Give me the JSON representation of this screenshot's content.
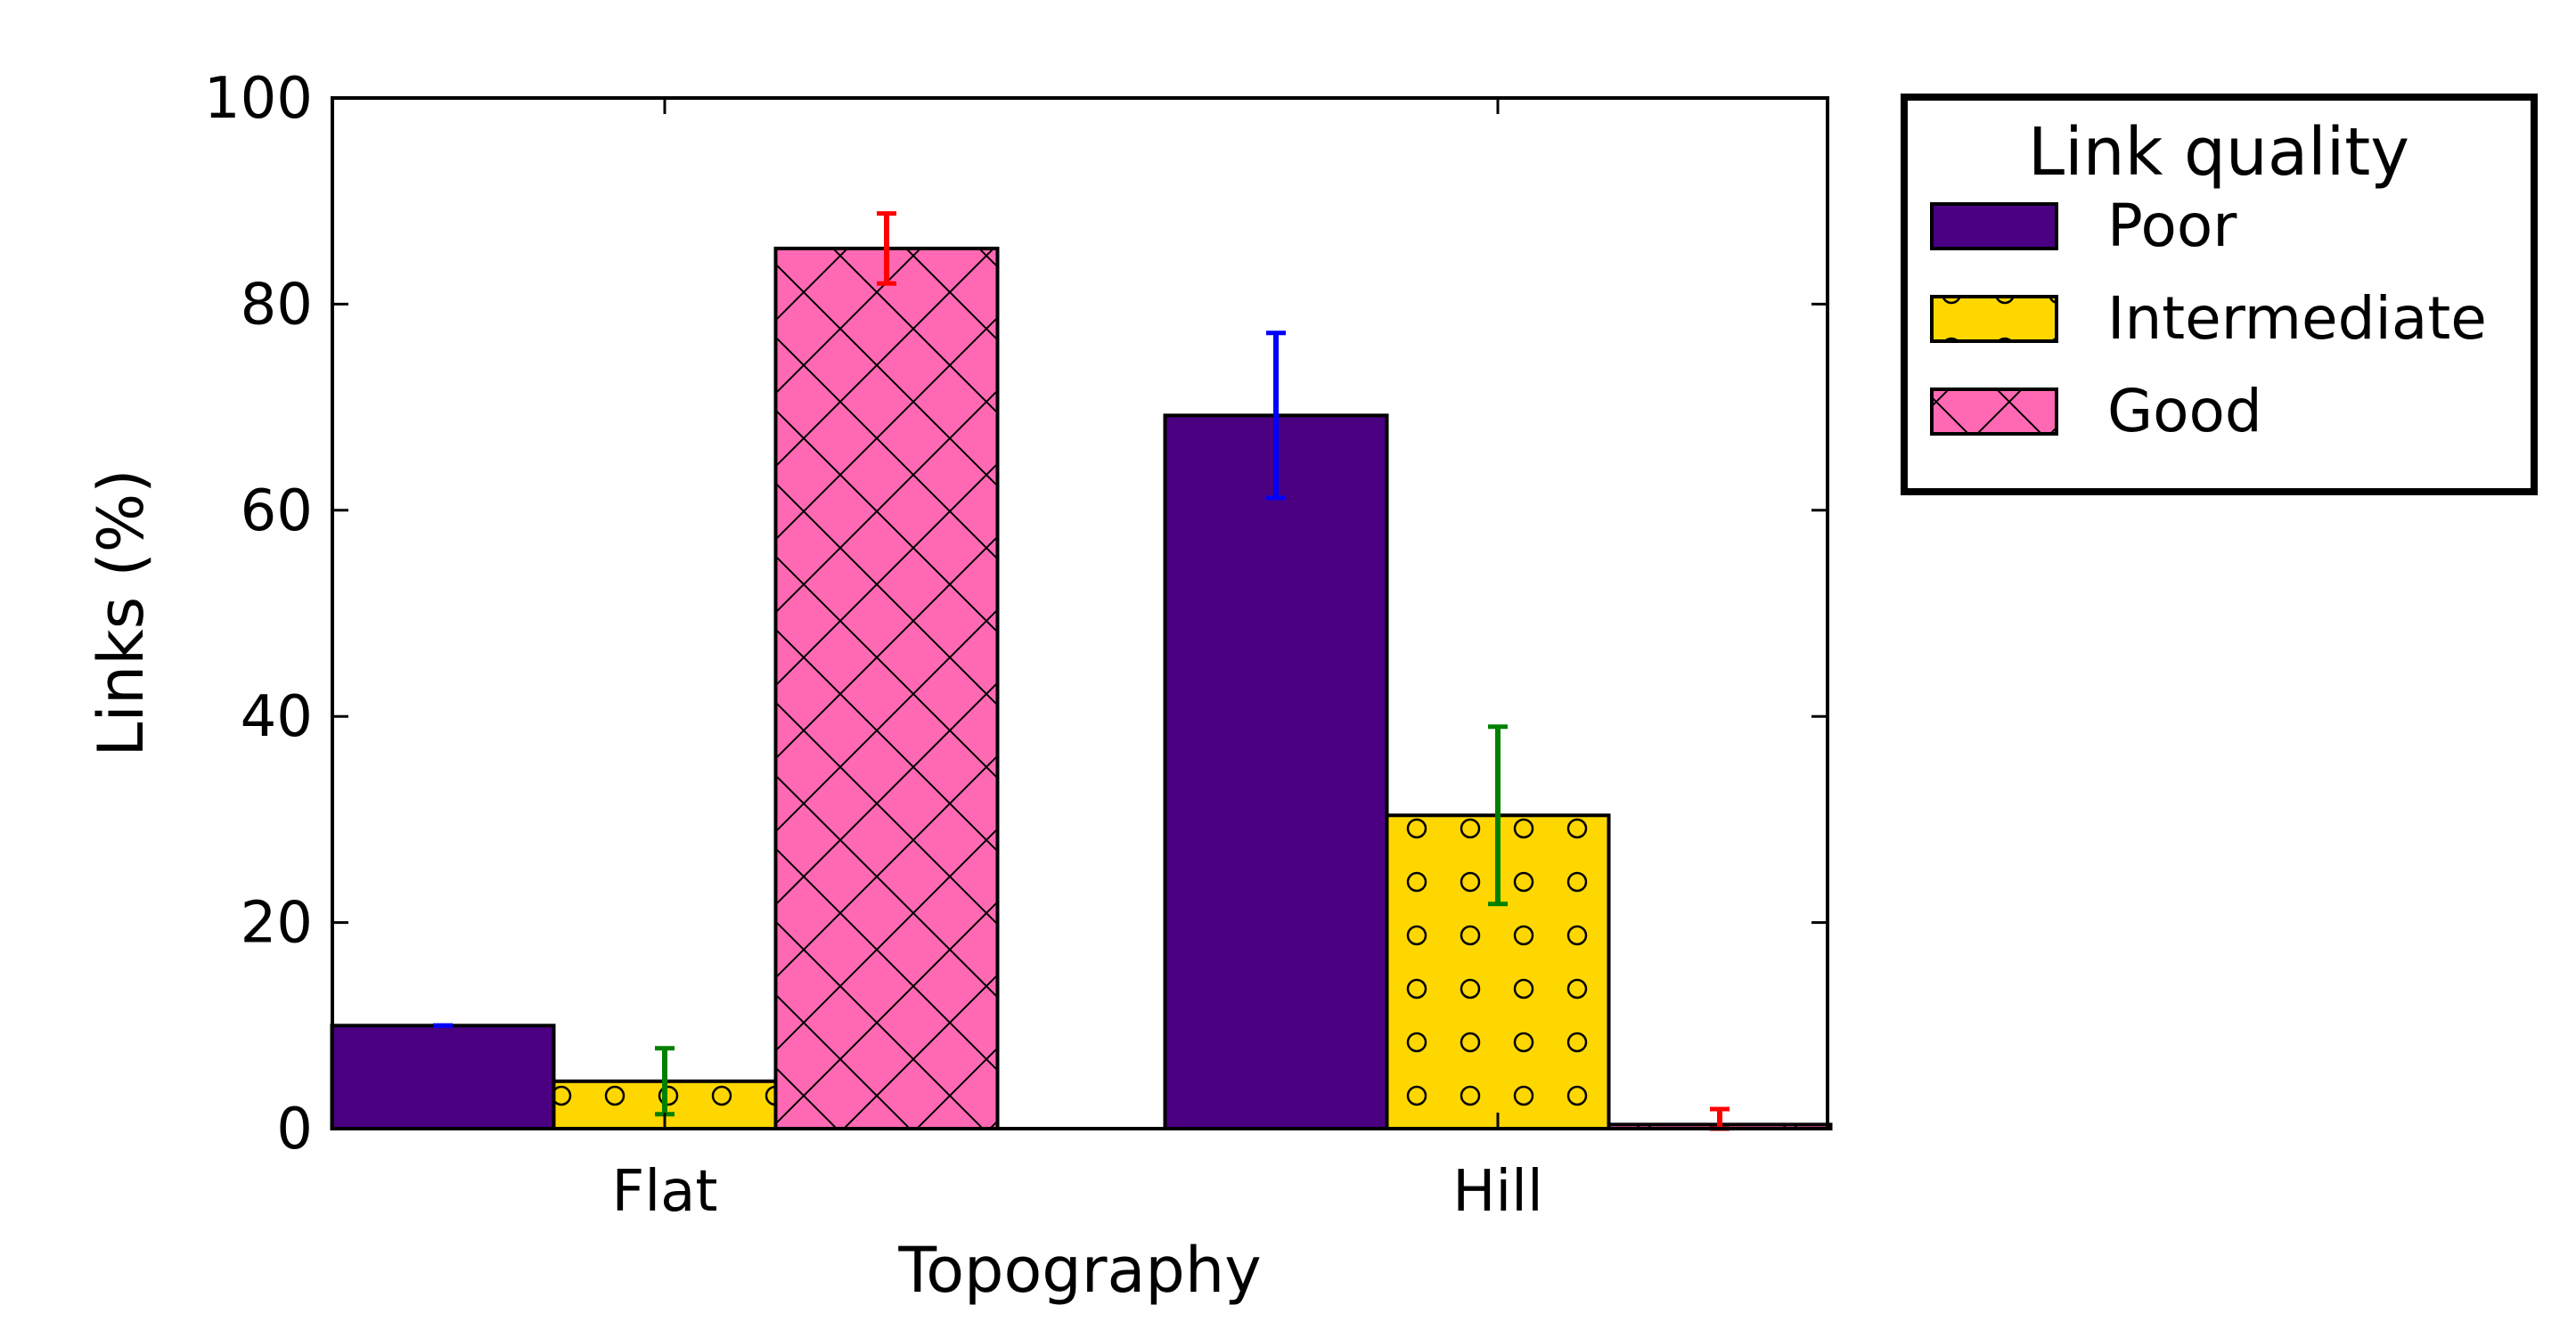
{
  "chart_data": {
    "type": "bar",
    "title": "",
    "xlabel": "Topography",
    "ylabel": "Links (%)",
    "ylim": [
      0,
      100
    ],
    "yticks": [
      0,
      20,
      40,
      60,
      80,
      100
    ],
    "ytick_labels": [
      "0",
      "20",
      "40",
      "60",
      "80",
      "100"
    ],
    "categories": [
      "Flat",
      "Hill"
    ],
    "series": [
      {
        "name": "Poor",
        "values": [
          10.0,
          69.2
        ],
        "errors": [
          0.0,
          8.0
        ],
        "color": "#4B0082",
        "error_color": "#0000FF",
        "hatch": "none"
      },
      {
        "name": "Intermediate",
        "values": [
          4.6,
          30.4
        ],
        "errors": [
          3.2,
          8.6
        ],
        "color": "#FFD700",
        "error_color": "#008000",
        "hatch": "circles"
      },
      {
        "name": "Good",
        "values": [
          85.4,
          0.4
        ],
        "errors": [
          3.4,
          1.5
        ],
        "color": "#FF69B4",
        "error_color": "#FF0000",
        "hatch": "crosshatch"
      }
    ],
    "legend": {
      "title": "Link quality",
      "position": "outside-top-right",
      "entries": [
        "Poor",
        "Intermediate",
        "Good"
      ]
    },
    "grid": false
  }
}
